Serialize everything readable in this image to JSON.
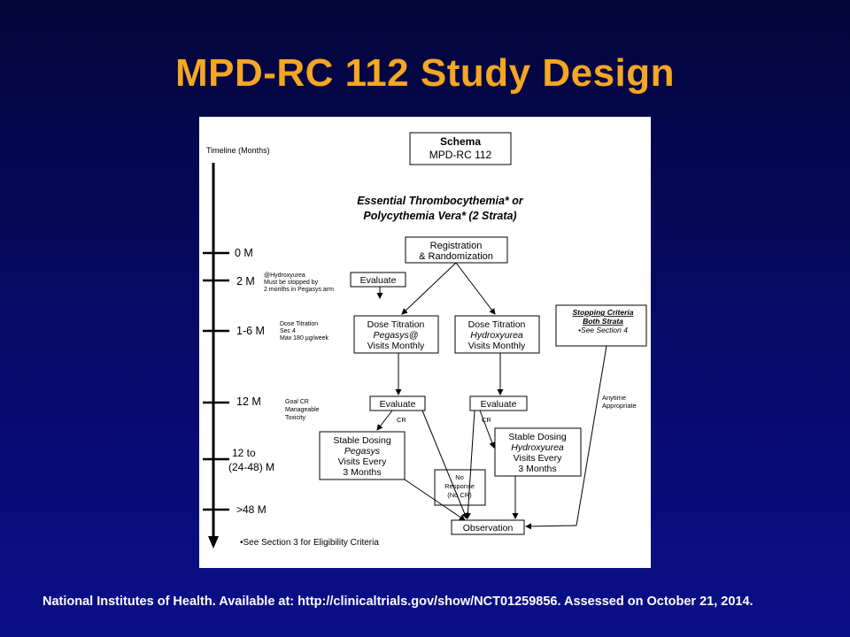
{
  "slide": {
    "title": "MPD-RC 112 Study Design",
    "citation": "National Institutes of Health. Available at: http://clinicaltrials.gov/show/NCT01259856. Assessed on October 21, 2014."
  },
  "diagram": {
    "timeline_label": "Timeline (Months)",
    "schema": [
      "Schema",
      "MPD-RC 112"
    ],
    "population": [
      "Essential Thrombocythemia* or",
      "Polycythemia Vera* (2 Strata)"
    ],
    "time_points": [
      "0 M",
      "2 M",
      "1-6 M",
      "12 M",
      "12 to",
      "(24-48) M",
      ">48 M"
    ],
    "notes": {
      "hydroxyurea": [
        "@Hydroxyurea",
        "Must be stopped by",
        "2 months in Pegasys arm"
      ],
      "titration": [
        "Dose Titration",
        "Sec 4",
        "Max 180 µg/week"
      ],
      "goal": [
        "Goal CR",
        "Manageable",
        "Toxicity"
      ]
    },
    "registration": [
      "Registration",
      "& Randomization"
    ],
    "evaluate": "Evaluate",
    "pegasys_titration": [
      "Dose Titration",
      "Pegasys@",
      "Visits Monthly"
    ],
    "hydroxyurea_titration": [
      "Dose Titration",
      "Hydroxyurea",
      "Visits Monthly"
    ],
    "stopping": [
      "Stopping Criteria",
      "Both Strata",
      "•See Section 4"
    ],
    "cr": "CR",
    "pegasys_stable": [
      "Stable Dosing",
      "Pegasys",
      "Visits Every",
      "3 Months"
    ],
    "hydroxyurea_stable": [
      "Stable Dosing",
      "Hydroxyurea",
      "Visits Every",
      "3 Months"
    ],
    "no_response": [
      "No",
      "Response",
      "(No CR)"
    ],
    "anytime": [
      "Anytime",
      "Appropriate"
    ],
    "observation": "Observation",
    "eligibility": "•See Section 3 for Eligibility Criteria"
  }
}
